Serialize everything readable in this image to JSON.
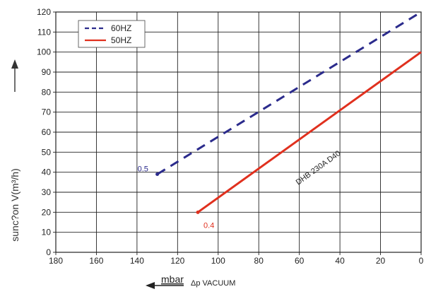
{
  "chart_data": {
    "type": "line",
    "title": "",
    "ylabel": "sunc?on V(m³/h)",
    "xlabel_unit": "mbar",
    "xlabel_text": "Δp  VACUUM",
    "xlim": [
      180,
      0
    ],
    "ylim": [
      0,
      120
    ],
    "x_ticks": [
      180,
      160,
      140,
      120,
      100,
      80,
      60,
      40,
      20,
      0
    ],
    "y_ticks": [
      0,
      10,
      20,
      30,
      40,
      50,
      60,
      70,
      80,
      90,
      100,
      110,
      120
    ],
    "grid": true,
    "legend_position": "top-left",
    "series": [
      {
        "name": "60HZ",
        "color": "#2b2b8c",
        "style": "dashed",
        "x": [
          130,
          0
        ],
        "y": [
          39,
          120
        ],
        "end_label": "0.5",
        "end_label_color": "#2b2b8c"
      },
      {
        "name": "50HZ",
        "color": "#e0301e",
        "style": "solid",
        "x": [
          110,
          0
        ],
        "y": [
          20,
          100
        ],
        "end_label": "0.4",
        "end_label_color": "#e0301e"
      }
    ],
    "annotation": "DHB 230A D40"
  }
}
